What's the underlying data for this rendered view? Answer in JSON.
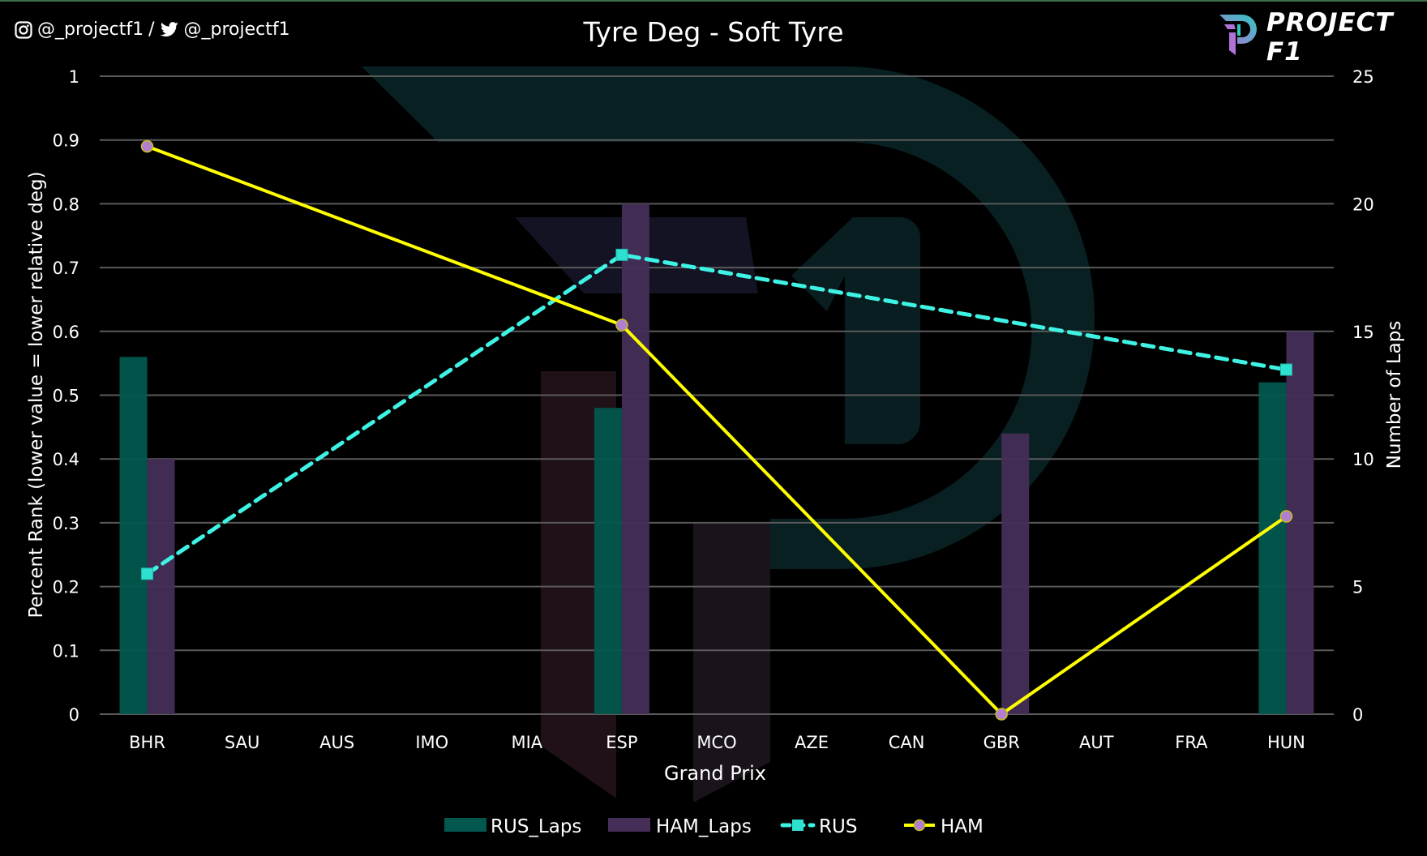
{
  "header": {
    "social_instagram": "@_projectf1",
    "separator": "/",
    "social_twitter": "@_projectf1",
    "title": "Tyre Deg - Soft Tyre",
    "brand": "PROJECT F1"
  },
  "colors": {
    "background": "#000000",
    "rus_laps": "#02574e",
    "ham_laps": "#452e57",
    "rus_line": "#3ef2e4",
    "ham_line": "#ffff00",
    "ham_marker": "#b07fd0",
    "grid": "#5a5a5a",
    "logo_teal": "#2ec9c0",
    "logo_purple": "#b072d6"
  },
  "chart_data": {
    "type": "bar+line",
    "title": "Tyre Deg - Soft Tyre",
    "xlabel": "Grand Prix",
    "ylabel": "Percent Rank (lower value = lower relative deg)",
    "y2label": "Number of Laps",
    "categories": [
      "BHR",
      "SAU",
      "AUS",
      "IMO",
      "MIA",
      "ESP",
      "MCO",
      "AZE",
      "CAN",
      "GBR",
      "AUT",
      "FRA",
      "HUN"
    ],
    "ylim": [
      0,
      1
    ],
    "y_ticks": [
      "0",
      "0.1",
      "0.2",
      "0.3",
      "0.4",
      "0.5",
      "0.6",
      "0.7",
      "0.8",
      "0.9",
      "1"
    ],
    "y2lim": [
      0,
      25
    ],
    "y2_ticks": [
      "0",
      "5",
      "10",
      "15",
      "20",
      "25"
    ],
    "grid": true,
    "legend_position": "bottom",
    "series": [
      {
        "name": "RUS_Laps",
        "type": "bar",
        "axis": "right",
        "values": [
          14,
          null,
          null,
          null,
          null,
          12,
          null,
          null,
          null,
          null,
          null,
          null,
          13
        ]
      },
      {
        "name": "HAM_Laps",
        "type": "bar",
        "axis": "right",
        "values": [
          10,
          null,
          null,
          null,
          null,
          20,
          null,
          null,
          null,
          11,
          null,
          null,
          15
        ]
      },
      {
        "name": "RUS",
        "type": "line",
        "style": "dashed",
        "marker": "square-x",
        "axis": "left",
        "values": [
          0.22,
          null,
          null,
          null,
          null,
          0.72,
          null,
          null,
          null,
          null,
          null,
          null,
          0.54
        ]
      },
      {
        "name": "HAM",
        "type": "line",
        "style": "solid",
        "marker": "circle",
        "axis": "left",
        "values": [
          0.89,
          null,
          null,
          null,
          null,
          0.61,
          null,
          null,
          null,
          0.0,
          null,
          null,
          0.31
        ]
      }
    ]
  },
  "legend": [
    {
      "label": "RUS_Laps"
    },
    {
      "label": "HAM_Laps"
    },
    {
      "label": "RUS"
    },
    {
      "label": "HAM"
    }
  ]
}
